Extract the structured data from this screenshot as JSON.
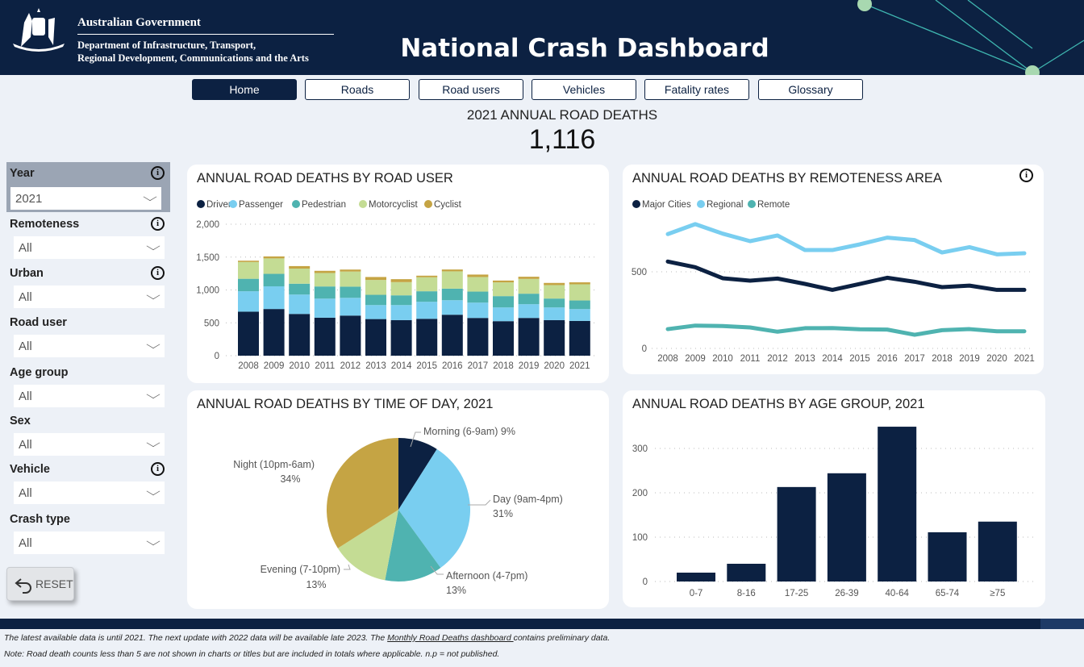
{
  "header": {
    "gov_name": "Australian Government",
    "department_line1": "Department of Infrastructure, Transport,",
    "department_line2": "Regional Development, Communications and the Arts",
    "title": "National Crash Dashboard"
  },
  "nav": [
    {
      "label": "Home",
      "active": true
    },
    {
      "label": "Roads"
    },
    {
      "label": "Road users"
    },
    {
      "label": "Vehicles"
    },
    {
      "label": "Fatality rates"
    },
    {
      "label": "Glossary"
    }
  ],
  "kpi": {
    "label": "2021 ANNUAL ROAD DEATHS",
    "value": "1,116"
  },
  "filters": [
    {
      "label": "Year",
      "value": "2021",
      "info": true
    },
    {
      "label": "Remoteness",
      "value": "All",
      "info": true
    },
    {
      "label": "Urban",
      "value": "All",
      "info": true
    },
    {
      "label": "Road user",
      "value": "All"
    },
    {
      "label": "Age group",
      "value": "All"
    },
    {
      "label": "Sex",
      "value": "All"
    },
    {
      "label": "Vehicle",
      "value": "All",
      "info": true
    },
    {
      "label": "Crash type",
      "value": "All"
    }
  ],
  "info_icon": "i",
  "reset_label": "RESET",
  "colors": {
    "navy": "#0c2142",
    "passenger": "#79cef0",
    "pedestrian": "#4fb3b0",
    "motorcyclist": "#c4dc94",
    "cyclist": "#c5a444"
  },
  "footer": {
    "line1_a": "The latest available data is until 2021. The next update with 2022 data will be available late 2023. The ",
    "line1_link": "Monthly Road Deaths dashboard ",
    "line1_b": "contains preliminary data.",
    "line2": "Note:  Road death counts less than 5 are not shown in charts or titles but are included in totals where applicable. n.p = not published."
  },
  "chart_data": [
    {
      "type": "bar",
      "stacked": true,
      "title": "ANNUAL ROAD DEATHS BY ROAD USER",
      "legend": "top-left",
      "ylim": [
        0,
        2000
      ],
      "yticks": [
        "0",
        "500",
        "1,000",
        "1,500",
        "2,000"
      ],
      "categories": [
        "2008",
        "2009",
        "2010",
        "2011",
        "2012",
        "2013",
        "2014",
        "2015",
        "2016",
        "2017",
        "2018",
        "2019",
        "2020",
        "2021"
      ],
      "series": [
        {
          "name": "Driver",
          "color": "#0c2142",
          "values": [
            670,
            710,
            635,
            578,
            610,
            557,
            541,
            561,
            623,
            574,
            525,
            574,
            541,
            529
          ]
        },
        {
          "name": "Passenger",
          "color": "#79cef0",
          "values": [
            310,
            345,
            295,
            290,
            270,
            213,
            229,
            259,
            221,
            233,
            209,
            209,
            193,
            180
          ]
        },
        {
          "name": "Pedestrian",
          "color": "#4fb3b0",
          "values": [
            190,
            190,
            165,
            185,
            170,
            156,
            148,
            160,
            176,
            168,
            172,
            160,
            135,
            131
          ]
        },
        {
          "name": "Motorcyclist",
          "color": "#c4dc94",
          "values": [
            255,
            235,
            230,
            205,
            230,
            226,
            201,
            213,
            263,
            222,
            209,
            225,
            205,
            246
          ]
        },
        {
          "name": "Cyclist",
          "color": "#c5a444",
          "values": [
            20,
            30,
            38,
            33,
            30,
            45,
            45,
            24,
            28,
            37,
            28,
            33,
            33,
            30
          ]
        }
      ]
    },
    {
      "type": "line",
      "title": "ANNUAL ROAD DEATHS BY REMOTENESS AREA",
      "legend": "top-left",
      "ylim": [
        0,
        800
      ],
      "yticks": [
        "0",
        "500"
      ],
      "categories": [
        "2008",
        "2009",
        "2010",
        "2011",
        "2012",
        "2013",
        "2014",
        "2015",
        "2016",
        "2017",
        "2018",
        "2019",
        "2020",
        "2021"
      ],
      "series": [
        {
          "name": "Major Cities",
          "color": "#0c2142",
          "values": [
            567,
            530,
            458,
            442,
            456,
            421,
            382,
            421,
            461,
            435,
            400,
            410,
            382,
            382
          ]
        },
        {
          "name": "Regional",
          "color": "#79cef0",
          "values": [
            746,
            811,
            749,
            700,
            737,
            642,
            642,
            679,
            723,
            707,
            626,
            661,
            614,
            621
          ]
        },
        {
          "name": "Remote",
          "color": "#4fb3b0",
          "values": [
            126,
            149,
            146,
            137,
            109,
            132,
            133,
            125,
            123,
            89,
            119,
            126,
            112,
            112
          ]
        }
      ]
    },
    {
      "type": "pie",
      "title": "ANNUAL ROAD DEATHS BY TIME OF DAY, 2021",
      "slices": [
        {
          "label": "Morning (6-9am)",
          "pct_label": "9%",
          "value": 9,
          "color": "#0c2142"
        },
        {
          "label": "Day (9am-4pm)",
          "pct_label": "31%",
          "value": 31,
          "color": "#79cef0"
        },
        {
          "label": "Afternoon (4-7pm)",
          "pct_label": "13%",
          "value": 13,
          "color": "#4fb3b0"
        },
        {
          "label": "Evening (7-10pm)",
          "pct_label": "13%",
          "value": 13,
          "color": "#c4dc94"
        },
        {
          "label": "Night (10pm-6am)",
          "pct_label": "34%",
          "value": 34,
          "color": "#c5a444"
        }
      ]
    },
    {
      "type": "bar",
      "title": "ANNUAL ROAD DEATHS BY AGE GROUP, 2021",
      "ylim": [
        0,
        350
      ],
      "yticks": [
        "0",
        "100",
        "200",
        "300"
      ],
      "categories": [
        "0-7",
        "8-16",
        "17-25",
        "26-39",
        "40-64",
        "65-74",
        "≥75"
      ],
      "values": [
        20,
        40,
        213,
        244,
        349,
        111,
        135
      ],
      "color": "#0c2142"
    }
  ]
}
